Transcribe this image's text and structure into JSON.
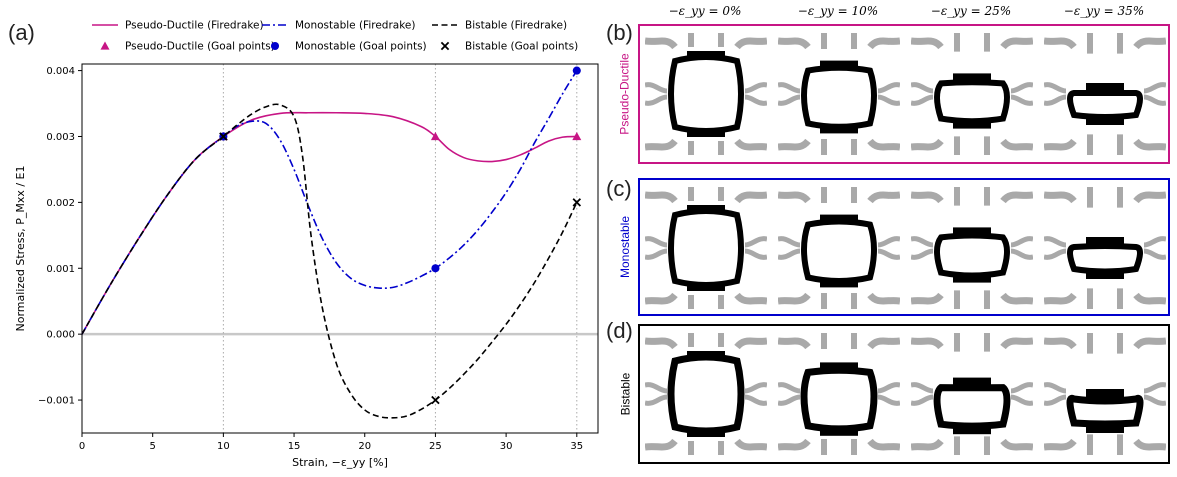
{
  "panel_labels": {
    "a": "(a)",
    "b": "(b)",
    "c": "(c)",
    "d": "(d)"
  },
  "legend": [
    {
      "label": "Pseudo-Ductile (Firedrake)",
      "kind": "line",
      "style": "solid",
      "color": "#c71585"
    },
    {
      "label": "Monostable (Firedrake)",
      "kind": "line",
      "style": "dashdot",
      "color": "#0000cc"
    },
    {
      "label": "Bistable (Firedrake)",
      "kind": "line",
      "style": "dashed",
      "color": "#000000"
    },
    {
      "label": "Pseudo-Ductile (Goal points)",
      "kind": "marker",
      "marker": "triangle",
      "color": "#c71585"
    },
    {
      "label": "Monostable (Goal points)",
      "kind": "marker",
      "marker": "circle",
      "color": "#0000cc"
    },
    {
      "label": "Bistable (Goal points)",
      "kind": "marker",
      "marker": "x",
      "color": "#000000"
    }
  ],
  "column_headers": [
    "−ε_yy = 0%",
    "−ε_yy = 10%",
    "−ε_yy = 25%",
    "−ε_yy = 35%"
  ],
  "row_labels": [
    {
      "label": "Pseudo-Ductile",
      "color": "#c71585"
    },
    {
      "label": "Monostable",
      "color": "#0000cc"
    },
    {
      "label": "Bistable",
      "color": "#000000"
    }
  ],
  "chart_data": {
    "type": "line",
    "xlabel": "Strain, −ε_yy [%]",
    "ylabel": "Normalized Stress, P_Mxx / E1",
    "xlim": [
      0,
      36.5
    ],
    "ylim": [
      -0.0015,
      0.0041
    ],
    "xticks": [
      0,
      5,
      10,
      15,
      20,
      25,
      30,
      35
    ],
    "yticks": [
      -0.001,
      0.0,
      0.001,
      0.002,
      0.003,
      0.004
    ],
    "ytick_labels": [
      "−0.001",
      "0.000",
      "0.001",
      "0.002",
      "0.003",
      "0.004"
    ],
    "vlines_x": [
      10,
      25,
      35
    ],
    "hline_y": 0,
    "series": [
      {
        "name": "Pseudo-Ductile (Firedrake)",
        "color": "#c71585",
        "style": "solid",
        "x": [
          0,
          2,
          4,
          6,
          8,
          10,
          12,
          14,
          16,
          18,
          20,
          22,
          24,
          25,
          26,
          27,
          28,
          29,
          30,
          31,
          32,
          33,
          34,
          35
        ],
        "y": [
          0,
          0.00075,
          0.00145,
          0.0021,
          0.00265,
          0.003,
          0.00325,
          0.00335,
          0.00336,
          0.00336,
          0.00335,
          0.0033,
          0.00315,
          0.003,
          0.0028,
          0.00268,
          0.00263,
          0.00262,
          0.00265,
          0.00272,
          0.00282,
          0.00293,
          0.00299,
          0.003
        ]
      },
      {
        "name": "Monostable (Firedrake)",
        "color": "#0000cc",
        "style": "dashdot",
        "x": [
          0,
          2,
          4,
          6,
          8,
          10,
          11,
          12,
          13,
          14,
          15,
          16,
          17,
          18,
          19,
          20,
          21,
          22,
          23,
          24,
          25,
          26,
          27,
          28,
          29,
          30,
          31,
          32,
          33,
          34,
          35
        ],
        "y": [
          0,
          0.00075,
          0.00145,
          0.0021,
          0.00265,
          0.003,
          0.00316,
          0.00323,
          0.0032,
          0.00295,
          0.0025,
          0.00195,
          0.00145,
          0.00108,
          0.00085,
          0.00074,
          0.0007,
          0.00071,
          0.00078,
          0.00088,
          0.001,
          0.00116,
          0.00135,
          0.00158,
          0.00185,
          0.00215,
          0.0025,
          0.0029,
          0.00327,
          0.00365,
          0.004
        ]
      },
      {
        "name": "Bistable (Firedrake)",
        "color": "#000000",
        "style": "dashed",
        "x": [
          0,
          2,
          4,
          6,
          8,
          10,
          11,
          12,
          13,
          14,
          15,
          15.6,
          16.2,
          17,
          18,
          19,
          20,
          21,
          22,
          23,
          24,
          25,
          26,
          27,
          28,
          29,
          30,
          31,
          32,
          33,
          34,
          35
        ],
        "y": [
          0,
          0.00075,
          0.00145,
          0.0021,
          0.00265,
          0.003,
          0.00318,
          0.00334,
          0.00345,
          0.00348,
          0.0033,
          0.0027,
          0.0015,
          0.0004,
          -0.00045,
          -0.0009,
          -0.00115,
          -0.00125,
          -0.00127,
          -0.00124,
          -0.00114,
          -0.001,
          -0.00082,
          -0.00061,
          -0.00038,
          -0.00012,
          0.00015,
          0.00045,
          0.00078,
          0.00115,
          0.00155,
          0.002
        ]
      }
    ],
    "goal_points": [
      {
        "name": "Pseudo-Ductile (Goal points)",
        "marker": "triangle",
        "color": "#c71585",
        "x": [
          10,
          25,
          35
        ],
        "y": [
          0.003,
          0.003,
          0.003
        ]
      },
      {
        "name": "Monostable (Goal points)",
        "marker": "circle",
        "color": "#0000cc",
        "x": [
          10,
          25,
          35
        ],
        "y": [
          0.003,
          0.001,
          0.004
        ]
      },
      {
        "name": "Bistable (Goal points)",
        "marker": "x",
        "color": "#000000",
        "x": [
          10,
          25,
          35
        ],
        "y": [
          0.003,
          -0.001,
          0.002
        ]
      }
    ]
  }
}
